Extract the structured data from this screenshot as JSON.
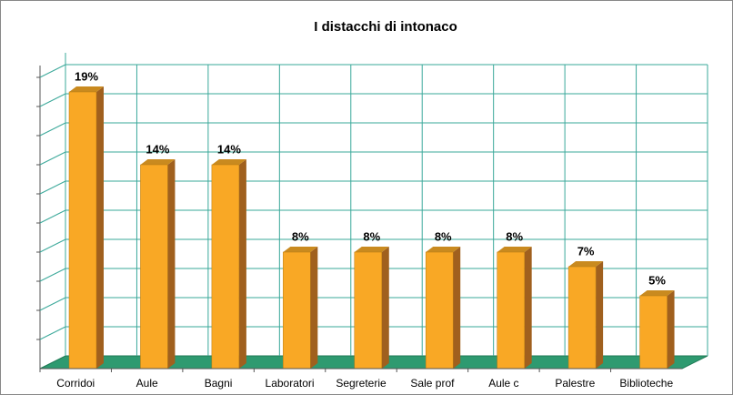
{
  "chart_data": {
    "type": "bar3d",
    "title": "I distacchi di intonaco",
    "categories": [
      "Corridoi",
      "Aule",
      "Bagni",
      "Laboratori",
      "Segreterie",
      "Sale prof",
      "Aule c",
      "Palestre",
      "Biblioteche"
    ],
    "values": [
      19,
      14,
      14,
      8,
      8,
      8,
      8,
      7,
      5
    ],
    "value_labels": [
      "19%",
      "14%",
      "14%",
      "8%",
      "8%",
      "8%",
      "8%",
      "7%",
      "5%"
    ],
    "color": "#f9a825",
    "ylim": [
      0,
      20
    ],
    "yticks": [
      0,
      2,
      4,
      6,
      8,
      10,
      12,
      14,
      16,
      18,
      20
    ],
    "grid": true
  }
}
